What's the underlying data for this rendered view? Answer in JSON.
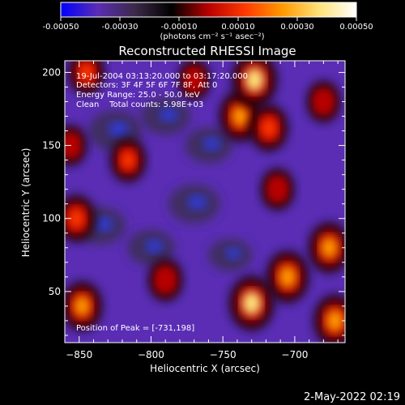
{
  "chart_data": {
    "type": "heatmap",
    "title": "Reconstructed RHESSI Image",
    "xlabel": "Heliocentric X (arcsec)",
    "ylabel": "Heliocentric Y (arcsec)",
    "xlim": [
      -860,
      -665
    ],
    "ylim": [
      15,
      208
    ],
    "x_ticks": [
      -850,
      -800,
      -750,
      -700
    ],
    "y_ticks": [
      50,
      100,
      150,
      200
    ],
    "colorbar": {
      "range": [
        -0.0005,
        0.0005
      ],
      "ticks": [
        "-0.00050",
        "-0.00030",
        "-0.00010",
        "0.00010",
        "0.00030",
        "0.00050"
      ],
      "unit_label": "(photons cm⁻² s⁻¹ asec⁻²)",
      "colors": [
        "#0000ff",
        "#5a2db4",
        "#3c2a4a",
        "#000000",
        "#b80000",
        "#ff3a00",
        "#ff9a00",
        "#ffe27a",
        "#ffffff"
      ]
    },
    "annotations": [
      "19-Jul-2004 03:13:20.000 to 03:17:20.000",
      "Detectors: 3F 4F 5F 6F 7F 8F, Att 0",
      "Energy Range: 25.0 - 50.0 keV",
      "Clean    Total counts: 5.98E+03"
    ],
    "peak_label": "Position of Peak = [-731,198]",
    "grid": false,
    "bright_regions": [
      {
        "x": -738,
        "y": 170,
        "level": 0.85
      },
      {
        "x": -728,
        "y": 195,
        "level": 1.0
      },
      {
        "x": -718,
        "y": 162,
        "level": 0.7
      },
      {
        "x": -712,
        "y": 120,
        "level": 0.5
      },
      {
        "x": -705,
        "y": 60,
        "level": 0.9
      },
      {
        "x": -730,
        "y": 42,
        "level": 1.0
      },
      {
        "x": -676,
        "y": 80,
        "level": 0.85
      },
      {
        "x": -672,
        "y": 30,
        "level": 0.9
      },
      {
        "x": -680,
        "y": 180,
        "level": 0.5
      },
      {
        "x": -852,
        "y": 100,
        "level": 0.7
      },
      {
        "x": -848,
        "y": 40,
        "level": 0.8
      },
      {
        "x": -845,
        "y": 200,
        "level": 0.6
      },
      {
        "x": -856,
        "y": 150,
        "level": 0.45
      },
      {
        "x": -816,
        "y": 140,
        "level": 0.6
      },
      {
        "x": -790,
        "y": 58,
        "level": 0.55
      },
      {
        "x": -770,
        "y": 195,
        "level": 0.45
      }
    ],
    "dark_regions": [
      {
        "x": -825,
        "y": 160,
        "level": 0.9
      },
      {
        "x": -790,
        "y": 170,
        "level": 0.7
      },
      {
        "x": -770,
        "y": 110,
        "level": 0.8
      },
      {
        "x": -835,
        "y": 95,
        "level": 0.7
      },
      {
        "x": -800,
        "y": 80,
        "level": 0.6
      },
      {
        "x": -760,
        "y": 150,
        "level": 0.6
      },
      {
        "x": -745,
        "y": 75,
        "level": 0.4
      }
    ]
  },
  "footer": {
    "timestamp": "2-May-2022 02:19"
  }
}
